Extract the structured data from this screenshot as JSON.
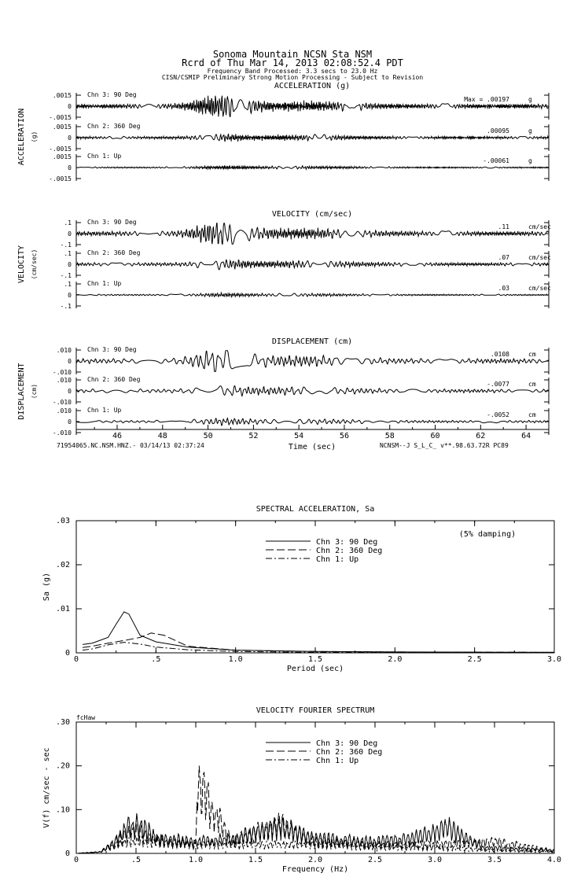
{
  "header": {
    "line1": "Sonoma Mountain    NCSN Sta NSM",
    "line2": "Rcrd of Thu Mar 14, 2013 02:08:52.4 PDT",
    "line3": "Frequency Band Processed: 3.3 secs to 23.0 Hz",
    "line4": "CISN/CSMIP Preliminary Strong Motion Processing - Subject to Revision"
  },
  "footer": {
    "left": "71954065.NC.NSM.HNZ.- 03/14/13 02:37:24",
    "right": "NCNSM--J  S_L_C_  v**.98.63.72R PC89"
  },
  "chart_data": [
    {
      "type": "line",
      "title": "ACCELERATION (g)",
      "ylabel": "ACCELERATION",
      "yunit": "(g)",
      "xlabel": "Time (sec)",
      "xlim": [
        44.2,
        65
      ],
      "xticks": [
        "46",
        "48",
        "50",
        "52",
        "54",
        "56",
        "58",
        "60",
        "62",
        "64"
      ],
      "ylim": [
        -0.0015,
        0.0015
      ],
      "yticks": [
        ".0015",
        "0",
        "-.0015"
      ],
      "max_label": "Max =",
      "series": [
        {
          "name": "Chn 3: 90 Deg",
          "peak": ".00197",
          "unit": "g"
        },
        {
          "name": "Chn 2: 360 Deg",
          "peak": ".00095",
          "unit": "g"
        },
        {
          "name": "Chn 1: Up",
          "peak": "-.00061",
          "unit": "g"
        }
      ]
    },
    {
      "type": "line",
      "title": "VELOCITY (cm/sec)",
      "ylabel": "VELOCITY",
      "yunit": "(cm/sec)",
      "xlim": [
        44.2,
        65
      ],
      "ylim": [
        -0.1,
        0.1
      ],
      "yticks": [
        ".1",
        "0",
        "-.1"
      ],
      "series": [
        {
          "name": "Chn 3: 90 Deg",
          "peak": ".11",
          "unit": "cm/sec"
        },
        {
          "name": "Chn 2: 360 Deg",
          "peak": ".07",
          "unit": "cm/sec"
        },
        {
          "name": "Chn 1: Up",
          "peak": ".03",
          "unit": "cm/sec"
        }
      ]
    },
    {
      "type": "line",
      "title": "DISPLACEMENT (cm)",
      "ylabel": "DISPLACEMENT",
      "yunit": "(cm)",
      "xlim": [
        44.2,
        65
      ],
      "ylim": [
        -0.01,
        0.01
      ],
      "yticks": [
        ".010",
        "0",
        "-.010"
      ],
      "series": [
        {
          "name": "Chn 3: 90 Deg",
          "peak": ".0108",
          "unit": "cm"
        },
        {
          "name": "Chn 2: 360 Deg",
          "peak": "-.0077",
          "unit": "cm"
        },
        {
          "name": "Chn 1: Up",
          "peak": "-.0052",
          "unit": "cm"
        }
      ]
    },
    {
      "type": "line",
      "title": "SPECTRAL ACCELERATION, Sa",
      "xlabel": "Period (sec)",
      "ylabel": "Sa (g)",
      "annotation": "(5% damping)",
      "xlim": [
        0,
        3.0
      ],
      "ylim": [
        0,
        0.03
      ],
      "xticks": [
        "0",
        ".5",
        "1.0",
        "1.5",
        "2.0",
        "2.5",
        "3.0"
      ],
      "yticks": [
        "0",
        ".01",
        ".02",
        ".03"
      ],
      "legend": "top-center",
      "series": [
        {
          "name": "Chn 3: 90 Deg",
          "style": "solid",
          "x": [
            0.04,
            0.1,
            0.2,
            0.25,
            0.3,
            0.33,
            0.4,
            0.5,
            0.7,
            1.0,
            1.5,
            2.0,
            3.0
          ],
          "y": [
            0.0019,
            0.0022,
            0.0035,
            0.0065,
            0.0093,
            0.0088,
            0.004,
            0.0025,
            0.0013,
            0.0006,
            0.0003,
            0.0002,
            0.0001
          ]
        },
        {
          "name": "Chn 2: 360 Deg",
          "style": "dashed",
          "x": [
            0.04,
            0.1,
            0.2,
            0.3,
            0.4,
            0.47,
            0.55,
            0.7,
            1.0,
            1.5,
            2.0,
            3.0
          ],
          "y": [
            0.0012,
            0.0015,
            0.0022,
            0.0028,
            0.0035,
            0.0045,
            0.004,
            0.0015,
            0.0006,
            0.0003,
            0.0002,
            0.0001
          ]
        },
        {
          "name": "Chn 1: Up",
          "style": "dashdot",
          "x": [
            0.04,
            0.1,
            0.2,
            0.3,
            0.4,
            0.5,
            0.7,
            1.0,
            1.5,
            2.0,
            3.0
          ],
          "y": [
            0.0006,
            0.0009,
            0.0018,
            0.0024,
            0.002,
            0.0013,
            0.0007,
            0.0003,
            0.0001,
            0.0001,
            0.0001
          ]
        }
      ]
    },
    {
      "type": "line",
      "title": "VELOCITY FOURIER SPECTRUM",
      "xlabel": "Frequency (Hz)",
      "ylabel": "V(f)   cm/sec - sec",
      "corner_label": "fcHaw",
      "xlim": [
        0,
        4.0
      ],
      "ylim": [
        0,
        0.3
      ],
      "xticks": [
        "0",
        ".5",
        "1.0",
        "1.5",
        "2.0",
        "2.5",
        "3.0",
        "3.5",
        "4.0"
      ],
      "yticks": [
        "0",
        ".10",
        ".20",
        ".30"
      ],
      "legend": "top-center",
      "series": [
        {
          "name": "Chn 3: 90 Deg",
          "style": "solid",
          "x": [
            0.2,
            0.3,
            0.4,
            0.5,
            0.7,
            1.0,
            1.3,
            1.7,
            2.0,
            2.5,
            2.8,
            3.1,
            3.4,
            3.7,
            4.0
          ],
          "y": [
            0.005,
            0.03,
            0.08,
            0.1,
            0.05,
            0.04,
            0.05,
            0.09,
            0.05,
            0.04,
            0.05,
            0.09,
            0.02,
            0.015,
            0.01
          ]
        },
        {
          "name": "Chn 2: 360 Deg",
          "style": "dashed",
          "x": [
            0.2,
            0.3,
            0.4,
            0.5,
            0.7,
            1.0,
            1.02,
            1.3,
            1.7,
            2.0,
            2.5,
            3.0,
            3.5,
            4.0
          ],
          "y": [
            0.005,
            0.03,
            0.06,
            0.08,
            0.04,
            0.03,
            0.24,
            0.04,
            0.1,
            0.04,
            0.03,
            0.03,
            0.04,
            0.01
          ]
        },
        {
          "name": "Chn 1: Up",
          "style": "dashdot",
          "x": [
            0.2,
            0.4,
            0.6,
            1.0,
            1.5,
            2.0,
            2.5,
            3.0,
            3.5,
            4.0
          ],
          "y": [
            0.005,
            0.04,
            0.04,
            0.03,
            0.03,
            0.03,
            0.02,
            0.02,
            0.01,
            0.005
          ]
        }
      ]
    }
  ]
}
